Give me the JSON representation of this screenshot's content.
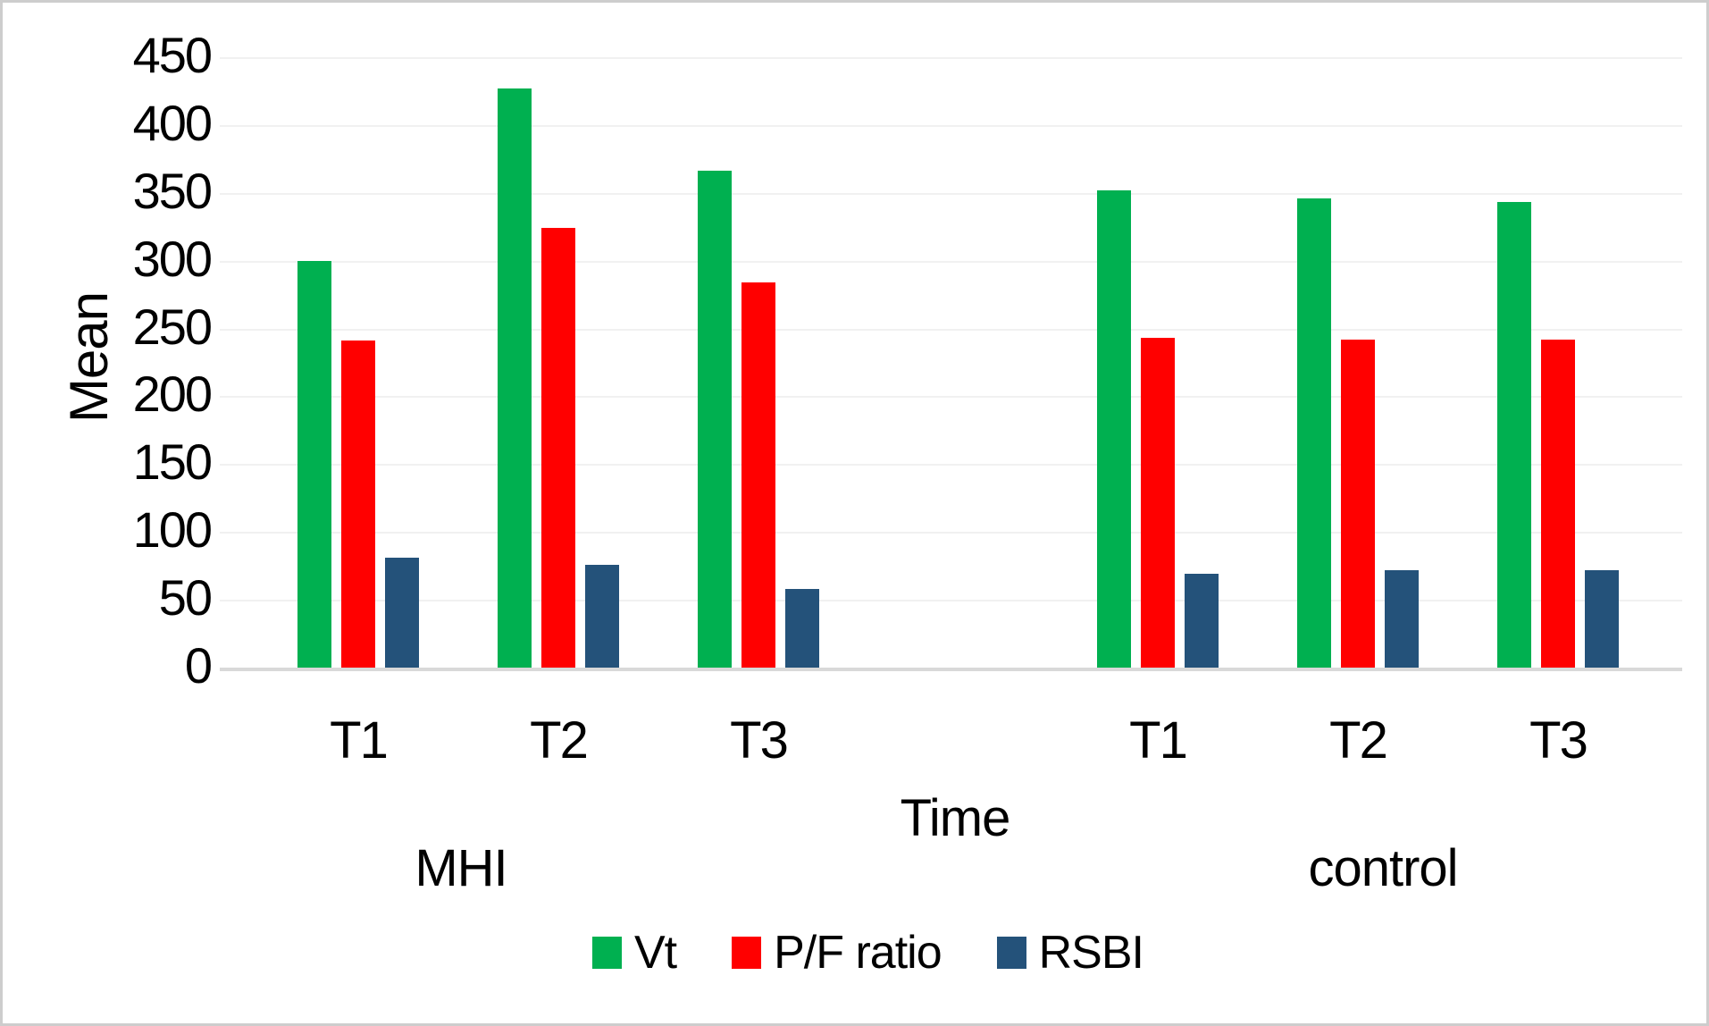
{
  "chart_data": {
    "type": "bar",
    "title": "",
    "ylabel": "Mean",
    "xlabel": "Time",
    "ylim": [
      0,
      450
    ],
    "ytick_step": 50,
    "ytick_labels": [
      "0",
      "50",
      "100",
      "150",
      "200",
      "250",
      "300",
      "350",
      "400",
      "450"
    ],
    "grid": true,
    "legend_position": "bottom",
    "group_labels": [
      "MHI",
      "control"
    ],
    "categories": [
      "T1",
      "T2",
      "T3",
      "T1",
      "T2",
      "T3"
    ],
    "series": [
      {
        "name": "Vt",
        "color": "#00B050",
        "values": [
          300,
          427,
          366,
          352,
          346,
          343
        ]
      },
      {
        "name": "P/F ratio",
        "color": "#FF0000",
        "values": [
          241,
          324,
          284,
          243,
          242,
          242
        ]
      },
      {
        "name": "RSBI",
        "color": "#24527A",
        "values": [
          81,
          76,
          58,
          69,
          72,
          72
        ]
      }
    ]
  }
}
